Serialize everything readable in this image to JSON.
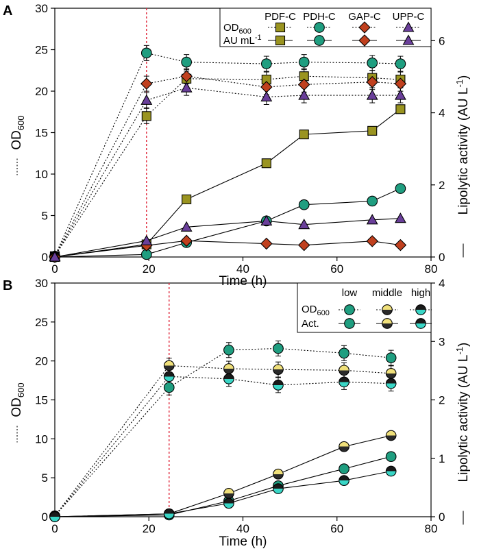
{
  "chart_data": [
    {
      "panel_label": "A",
      "type": "line",
      "xlabel": "Time (h)",
      "ylabel_left": "OD",
      "ylabel_left_sub": "600",
      "ylabel_right": "Lipolytic activity (AU L",
      "ylabel_right_sup": "-1",
      "xlim": [
        0,
        80
      ],
      "xticks": [
        0,
        20,
        40,
        60,
        80
      ],
      "ylim_left": [
        0,
        30
      ],
      "yticks_left": [
        0,
        5,
        10,
        15,
        20,
        25,
        30
      ],
      "ylim_right": [
        0,
        6.9
      ],
      "yticks_right": [
        0,
        2,
        4,
        6
      ],
      "vline_x": 19.5,
      "legend": {
        "row_label_od": "OD",
        "row_label_od_sub": "600",
        "row_label_act": "AU mL",
        "row_label_act_sup": "-1"
      },
      "series": [
        {
          "name": "PDF-C",
          "marker": "square",
          "color": "#9a9420",
          "od_x": [
            0,
            19.5,
            28,
            45,
            53,
            67.5,
            73.5
          ],
          "od_y": [
            0.1,
            17.0,
            21.5,
            21.4,
            21.8,
            21.6,
            21.4
          ],
          "act_x": [
            0,
            19.5,
            28,
            45,
            53,
            67.5,
            73.5
          ],
          "act_y": [
            0.0,
            0.35,
            1.6,
            2.6,
            3.4,
            3.5,
            4.1
          ]
        },
        {
          "name": "PDH-C",
          "marker": "circle",
          "color": "#1f9e80",
          "od_x": [
            0,
            19.5,
            28,
            45,
            53,
            67.5,
            73.5
          ],
          "od_y": [
            0.1,
            24.6,
            23.5,
            23.3,
            23.5,
            23.4,
            23.3
          ],
          "act_x": [
            0,
            19.5,
            28,
            45,
            53,
            67.5,
            73.5
          ],
          "act_y": [
            0.0,
            0.07,
            0.4,
            1.0,
            1.45,
            1.55,
            1.9
          ]
        },
        {
          "name": "GAP-C",
          "marker": "diamond",
          "color": "#c0401e",
          "od_x": [
            0,
            19.5,
            28,
            45,
            53,
            67.5,
            73.5
          ],
          "od_y": [
            0.1,
            20.9,
            21.8,
            20.5,
            20.8,
            21.1,
            20.9
          ],
          "act_x": [
            0,
            19.5,
            28,
            45,
            53,
            67.5,
            73.5
          ],
          "act_y": [
            0.0,
            0.32,
            0.45,
            0.37,
            0.33,
            0.44,
            0.33
          ]
        },
        {
          "name": "UPP-C",
          "marker": "triangle",
          "color": "#6a3f9a",
          "od_x": [
            0,
            19.5,
            28,
            45,
            53,
            67.5,
            73.5
          ],
          "od_y": [
            0.1,
            18.9,
            20.4,
            19.3,
            19.5,
            19.5,
            19.5
          ],
          "act_x": [
            0,
            19.5,
            28,
            45,
            53,
            67.5,
            73.5
          ],
          "act_y": [
            0.0,
            0.45,
            0.83,
            1.0,
            0.9,
            1.03,
            1.07
          ]
        }
      ]
    },
    {
      "panel_label": "B",
      "type": "line",
      "xlabel": "Time (h)",
      "ylabel_left": "OD",
      "ylabel_left_sub": "600",
      "ylabel_right": "Lipolytic activity (AU L",
      "ylabel_right_sup": "-1",
      "xlim": [
        0,
        80
      ],
      "xticks": [
        0,
        20,
        40,
        60,
        80
      ],
      "ylim_left": [
        0,
        30
      ],
      "yticks_left": [
        0,
        5,
        10,
        15,
        20,
        25,
        30
      ],
      "ylim_right": [
        0,
        4
      ],
      "yticks_right": [
        0,
        1,
        2,
        3,
        4
      ],
      "vline_x": 24.3,
      "legend": {
        "row_label_od": "OD",
        "row_label_od_sub": "600",
        "row_label_act": "Act."
      },
      "series": [
        {
          "name": "low",
          "marker": "circle-full",
          "color": "#1f9e80",
          "color2": "#1f9e80",
          "od_x": [
            0,
            24.3,
            37,
            47.5,
            61.5,
            71.5
          ],
          "od_y": [
            0.1,
            16.6,
            21.4,
            21.6,
            21.0,
            20.4
          ],
          "act_x": [
            0,
            24.3,
            37,
            47.5,
            61.5,
            71.5
          ],
          "act_y": [
            0.0,
            0.03,
            0.27,
            0.53,
            0.82,
            1.03
          ]
        },
        {
          "name": "middle",
          "marker": "circle-half",
          "color": "#f0e07a",
          "color2": "#2a2a2a",
          "od_x": [
            0,
            24.3,
            37,
            47.5,
            61.5,
            71.5
          ],
          "od_y": [
            0.1,
            19.4,
            19.0,
            18.9,
            18.8,
            18.4
          ],
          "act_x": [
            0,
            24.3,
            37,
            47.5,
            61.5,
            71.5
          ],
          "act_y": [
            0.0,
            0.05,
            0.4,
            0.73,
            1.2,
            1.39
          ]
        },
        {
          "name": "high",
          "marker": "circle-half",
          "color": "#1a1a1a",
          "color2": "#39d6c6",
          "od_x": [
            0,
            24.3,
            37,
            47.5,
            61.5,
            71.5
          ],
          "od_y": [
            0.1,
            18.0,
            17.7,
            16.9,
            17.3,
            17.1
          ],
          "act_x": [
            0,
            24.3,
            37,
            47.5,
            61.5,
            71.5
          ],
          "act_y": [
            0.0,
            0.05,
            0.23,
            0.48,
            0.62,
            0.78
          ]
        }
      ]
    }
  ]
}
